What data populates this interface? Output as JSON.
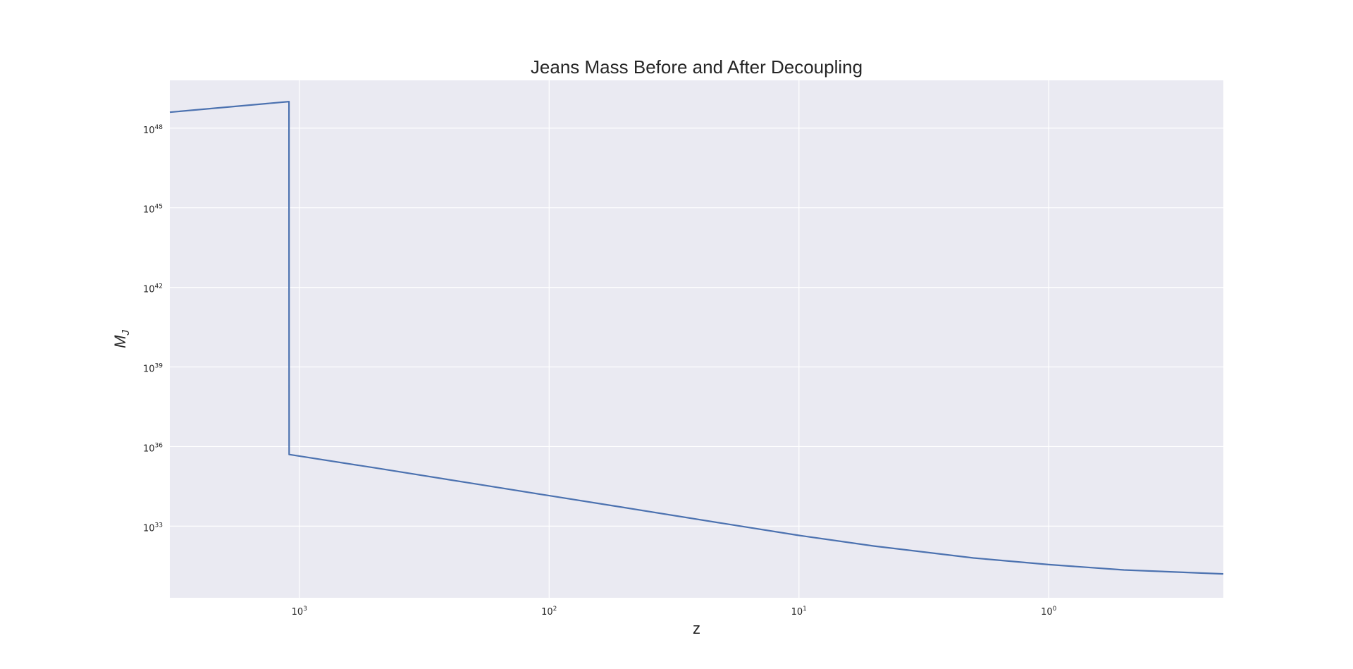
{
  "chart_data": {
    "type": "line",
    "title": "Jeans Mass Before and After Decoupling",
    "xlabel": "z",
    "ylabel": "M",
    "ylabel_subscript": "J",
    "xscale": "log",
    "yscale": "log",
    "x_inverted": true,
    "xlim": [
      3300,
      0.2
    ],
    "ylim_exponent": [
      30.3,
      49.8
    ],
    "x_ticks": [
      {
        "value": 1000,
        "base": "10",
        "exp": "3"
      },
      {
        "value": 100,
        "base": "10",
        "exp": "2"
      },
      {
        "value": 10,
        "base": "10",
        "exp": "1"
      },
      {
        "value": 1,
        "base": "10",
        "exp": "0"
      }
    ],
    "y_ticks": [
      {
        "exp_value": 48,
        "base": "10",
        "exp": "48"
      },
      {
        "exp_value": 45,
        "base": "10",
        "exp": "45"
      },
      {
        "exp_value": 42,
        "base": "10",
        "exp": "42"
      },
      {
        "exp_value": 39,
        "base": "10",
        "exp": "39"
      },
      {
        "exp_value": 36,
        "base": "10",
        "exp": "36"
      },
      {
        "exp_value": 33,
        "base": "10",
        "exp": "33"
      }
    ],
    "grid": true,
    "series": [
      {
        "name": "M_J",
        "color": "#4c72b0",
        "x": [
          3300,
          1100,
          1099,
          500,
          200,
          100,
          50,
          20,
          10,
          5,
          2,
          1,
          0.5,
          0.2
        ],
        "log10_y": [
          48.6,
          49.0,
          35.7,
          35.2,
          34.6,
          34.15,
          33.7,
          33.1,
          32.65,
          32.25,
          31.8,
          31.55,
          31.35,
          31.2
        ]
      }
    ]
  },
  "colors": {
    "plot_background": "#eaeaf2",
    "grid": "#ffffff",
    "line": "#4c72b0",
    "text": "#262626"
  }
}
